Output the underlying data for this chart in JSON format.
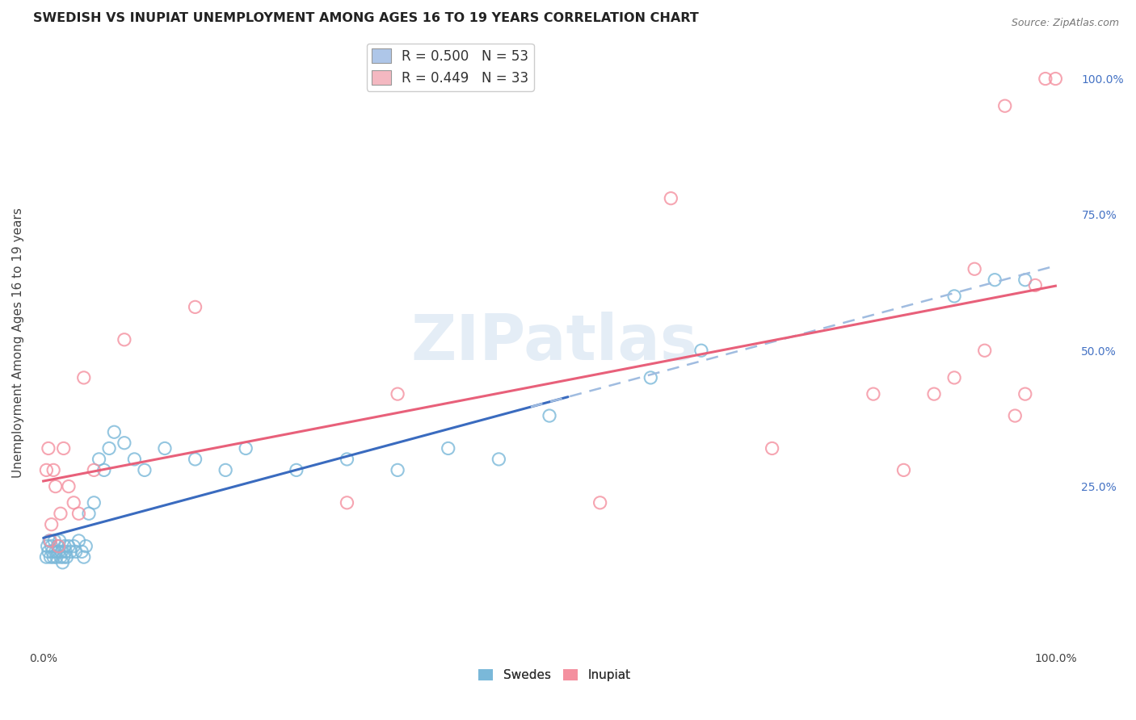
{
  "title": "SWEDISH VS INUPIAT UNEMPLOYMENT AMONG AGES 16 TO 19 YEARS CORRELATION CHART",
  "source": "Source: ZipAtlas.com",
  "ylabel": "Unemployment Among Ages 16 to 19 years",
  "legend_label_swedes": "R = 0.500   N = 53",
  "legend_label_inupiat": "R = 0.449   N = 33",
  "legend_color_swedes": "#aec6e8",
  "legend_color_inupiat": "#f4b8c1",
  "swedes_color": "#7ab8d9",
  "inupiat_color": "#f4909f",
  "swedes_line_color": "#3a6bbf",
  "inupiat_line_color": "#e8607a",
  "dashed_line_color": "#a0bce0",
  "background_color": "#ffffff",
  "watermark": "ZIPatlas",
  "right_ytick_labels": [
    "100.0%",
    "75.0%",
    "50.0%",
    "25.0%"
  ],
  "right_ytick_values": [
    1.0,
    0.75,
    0.5,
    0.25
  ],
  "swedes_x": [
    0.003,
    0.004,
    0.005,
    0.006,
    0.007,
    0.008,
    0.009,
    0.01,
    0.011,
    0.012,
    0.013,
    0.014,
    0.015,
    0.016,
    0.017,
    0.018,
    0.019,
    0.02,
    0.021,
    0.022,
    0.023,
    0.025,
    0.027,
    0.03,
    0.032,
    0.035,
    0.038,
    0.04,
    0.042,
    0.045,
    0.05,
    0.055,
    0.06,
    0.065,
    0.07,
    0.08,
    0.09,
    0.1,
    0.12,
    0.15,
    0.18,
    0.2,
    0.25,
    0.3,
    0.35,
    0.4,
    0.45,
    0.5,
    0.6,
    0.65,
    0.9,
    0.94,
    0.97
  ],
  "swedes_y": [
    0.12,
    0.14,
    0.13,
    0.15,
    0.12,
    0.14,
    0.13,
    0.12,
    0.15,
    0.13,
    0.12,
    0.14,
    0.13,
    0.15,
    0.12,
    0.13,
    0.11,
    0.12,
    0.14,
    0.13,
    0.12,
    0.14,
    0.13,
    0.14,
    0.13,
    0.15,
    0.13,
    0.12,
    0.14,
    0.2,
    0.22,
    0.3,
    0.28,
    0.32,
    0.35,
    0.33,
    0.3,
    0.28,
    0.32,
    0.3,
    0.28,
    0.32,
    0.28,
    0.3,
    0.28,
    0.32,
    0.3,
    0.38,
    0.45,
    0.5,
    0.6,
    0.63,
    0.63
  ],
  "inupiat_x": [
    0.003,
    0.005,
    0.007,
    0.008,
    0.01,
    0.012,
    0.015,
    0.017,
    0.02,
    0.025,
    0.03,
    0.035,
    0.04,
    0.05,
    0.08,
    0.15,
    0.3,
    0.35,
    0.55,
    0.62,
    0.72,
    0.82,
    0.85,
    0.88,
    0.9,
    0.92,
    0.93,
    0.95,
    0.96,
    0.97,
    0.98,
    0.99,
    1.0
  ],
  "inupiat_y": [
    0.28,
    0.32,
    0.15,
    0.18,
    0.28,
    0.25,
    0.14,
    0.2,
    0.32,
    0.25,
    0.22,
    0.2,
    0.45,
    0.28,
    0.52,
    0.58,
    0.22,
    0.42,
    0.22,
    0.78,
    0.32,
    0.42,
    0.28,
    0.42,
    0.45,
    0.65,
    0.5,
    0.95,
    0.38,
    0.42,
    0.62,
    1.0,
    1.0
  ],
  "xmin": 0.0,
  "xmax": 1.0,
  "ymin": -0.05,
  "ymax": 1.08
}
